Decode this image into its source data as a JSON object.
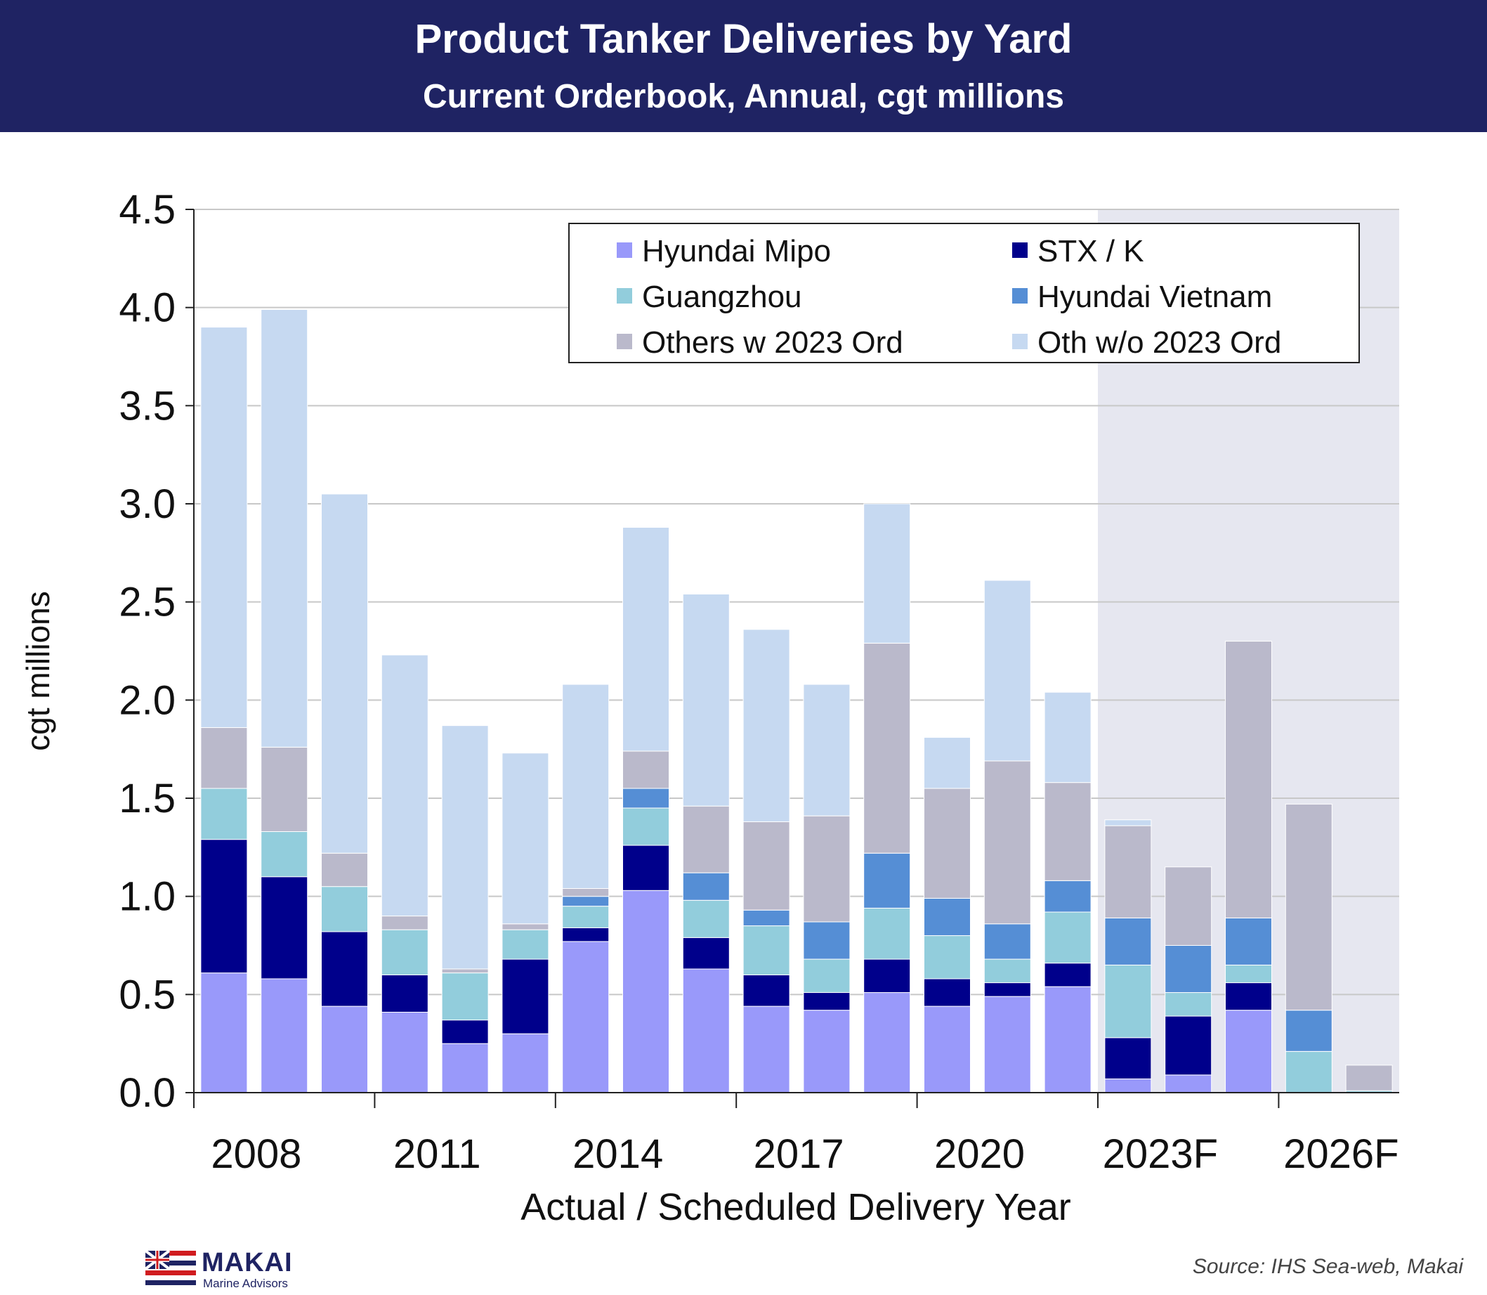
{
  "header": {
    "title": "Product Tanker Deliveries by Yard",
    "subtitle": "Current Orderbook, Annual, cgt millions"
  },
  "footer": {
    "source": "Source: IHS Sea-web, Makai",
    "logo_name": "MAKAI",
    "logo_sub": "Marine Advisors"
  },
  "colors": {
    "header_bg": "#1f2363",
    "forecast_shade": "#e6e7f0",
    "gridline": "#c8c8c8"
  },
  "chart_data": {
    "type": "bar",
    "stacked": true,
    "title": "Product Tanker Deliveries by Yard",
    "subtitle": "Current Orderbook, Annual, cgt millions",
    "xlabel": "Actual / Scheduled Delivery Year",
    "ylabel": "cgt millions",
    "ylim": [
      0,
      4.5
    ],
    "yticks": [
      "0.0",
      "0.5",
      "1.0",
      "1.5",
      "2.0",
      "2.5",
      "3.0",
      "3.5",
      "4.0",
      "4.5"
    ],
    "grid": true,
    "legend_position": "top-right",
    "forecast_shaded_from": "2023F",
    "categories": [
      "2008",
      "2009",
      "2010",
      "2011",
      "2012",
      "2013",
      "2014",
      "2015",
      "2016",
      "2017",
      "2018",
      "2019",
      "2020",
      "2021",
      "2022",
      "2023F",
      "2024F",
      "2025F",
      "2026F",
      "2027F"
    ],
    "tick_labels": [
      "2008",
      "2011",
      "2014",
      "2017",
      "2020",
      "2023F",
      "2026F"
    ],
    "series": [
      {
        "name": "Hyundai Mipo",
        "color": "#9999fa",
        "values": [
          0.61,
          0.58,
          0.44,
          0.41,
          0.25,
          0.3,
          0.77,
          1.03,
          0.63,
          0.44,
          0.42,
          0.51,
          0.44,
          0.49,
          0.54,
          0.07,
          0.09,
          0.42,
          0.0,
          0.0
        ]
      },
      {
        "name": "STX / K",
        "color": "#00008b",
        "values": [
          0.68,
          0.52,
          0.38,
          0.19,
          0.12,
          0.38,
          0.07,
          0.23,
          0.16,
          0.16,
          0.09,
          0.17,
          0.14,
          0.07,
          0.12,
          0.21,
          0.3,
          0.14,
          0.0,
          0.0
        ]
      },
      {
        "name": "Guangzhou",
        "color": "#92cddc",
        "values": [
          0.26,
          0.23,
          0.23,
          0.23,
          0.24,
          0.15,
          0.11,
          0.19,
          0.19,
          0.25,
          0.17,
          0.26,
          0.22,
          0.12,
          0.26,
          0.37,
          0.12,
          0.09,
          0.21,
          0.01
        ]
      },
      {
        "name": "Hyundai Vietnam",
        "color": "#558ed5",
        "values": [
          0.0,
          0.0,
          0.0,
          0.0,
          0.0,
          0.0,
          0.05,
          0.1,
          0.14,
          0.08,
          0.19,
          0.28,
          0.19,
          0.18,
          0.16,
          0.24,
          0.24,
          0.24,
          0.21,
          0.0
        ]
      },
      {
        "name": "Others w 2023 Ord",
        "color": "#bab9cb",
        "values": [
          0.31,
          0.43,
          0.17,
          0.07,
          0.02,
          0.03,
          0.04,
          0.19,
          0.34,
          0.45,
          0.54,
          1.07,
          0.56,
          0.83,
          0.5,
          0.47,
          0.4,
          1.41,
          1.05,
          0.13
        ]
      },
      {
        "name": "Oth w/o 2023 Ord",
        "color": "#c6d9f1",
        "values": [
          2.04,
          2.23,
          1.83,
          1.33,
          1.24,
          0.87,
          1.04,
          1.14,
          1.08,
          0.98,
          0.67,
          0.71,
          0.26,
          0.92,
          0.46,
          0.03,
          0.0,
          0.0,
          0.0,
          0.0
        ]
      }
    ]
  }
}
